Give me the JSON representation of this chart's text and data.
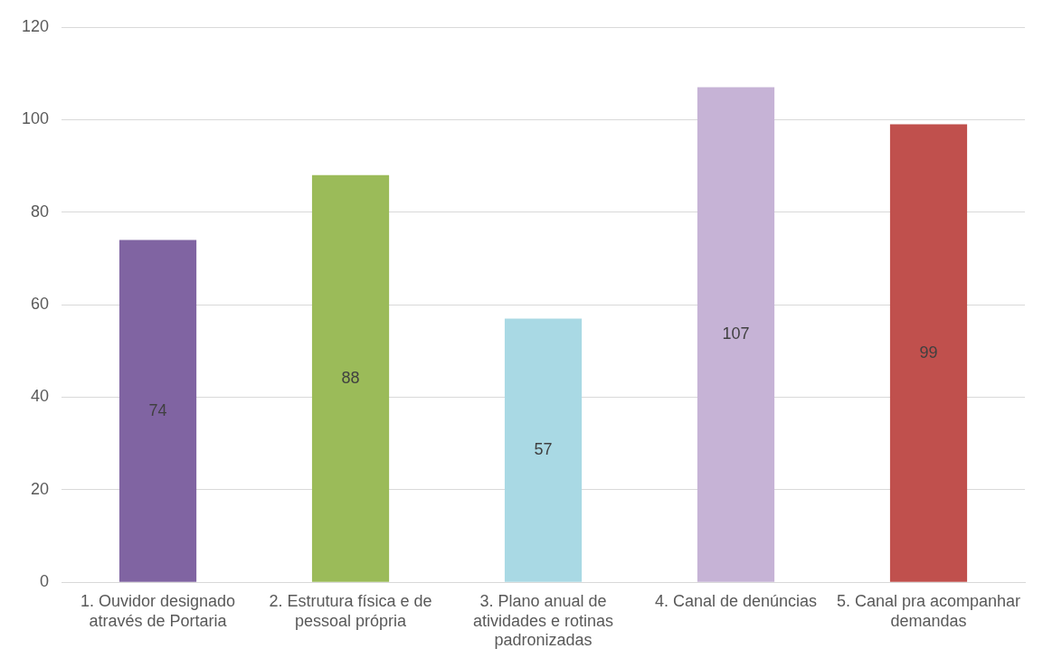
{
  "chart_data": {
    "type": "bar",
    "categories": [
      "1. Ouvidor designado através de Portaria",
      "2. Estrutura física e de pessoal própria",
      "3. Plano anual de atividades e rotinas padronizadas",
      "4. Canal de denúncias",
      "5. Canal pra acompanhar demandas"
    ],
    "values": [
      74,
      88,
      57,
      107,
      99
    ],
    "colors": [
      "#8064a2",
      "#9bbb59",
      "#a9d9e4",
      "#c6b3d6",
      "#c0504d"
    ],
    "ylim": [
      0,
      120
    ],
    "yticks": [
      0,
      20,
      40,
      60,
      80,
      100,
      120
    ],
    "grid": "y",
    "legend": false,
    "data_labels": true
  }
}
